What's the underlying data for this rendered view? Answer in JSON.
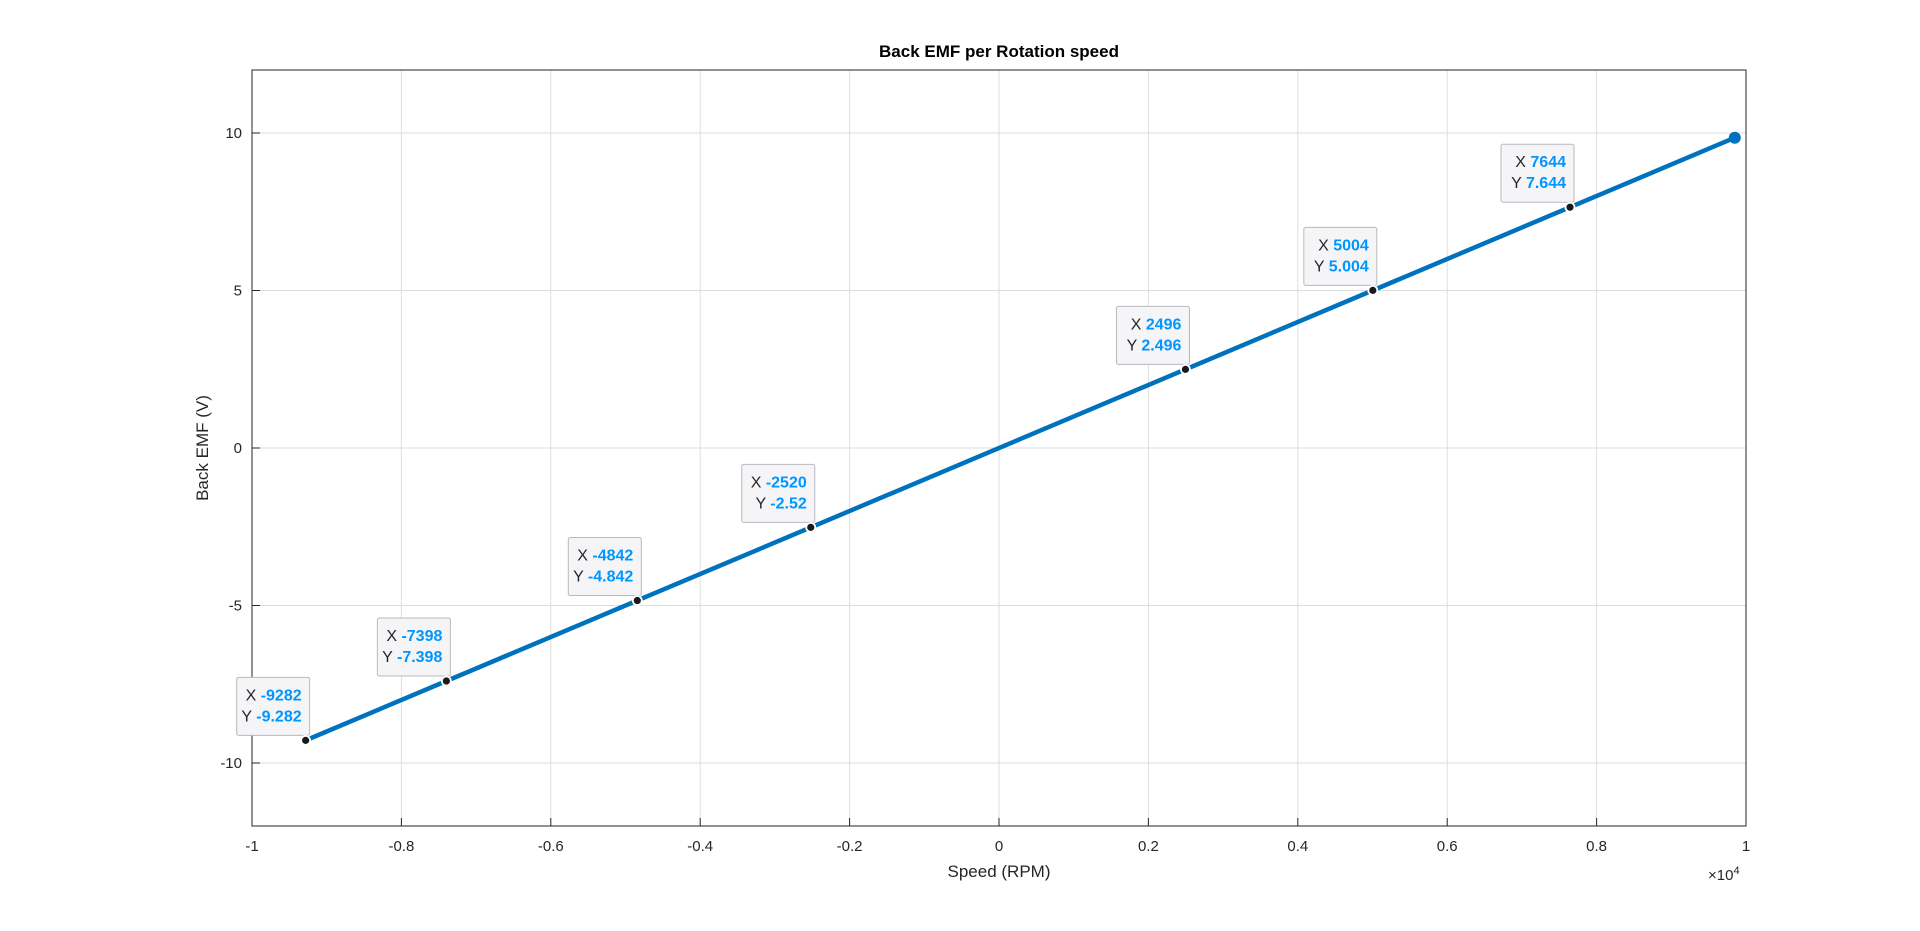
{
  "chart_data": {
    "type": "line",
    "title": "Back EMF per Rotation speed",
    "xlabel": "Speed (RPM)",
    "ylabel": "Back EMF (V)",
    "xlim": [
      -10000,
      10000
    ],
    "ylim": [
      -12,
      12
    ],
    "x_exponent_label": "×10",
    "x_exponent_power": "4",
    "x_tick_values": [
      -10000,
      -8000,
      -6000,
      -4000,
      -2000,
      0,
      2000,
      4000,
      6000,
      8000,
      10000
    ],
    "x_tick_labels": [
      "-1",
      "-0.8",
      "-0.6",
      "-0.4",
      "-0.2",
      "0",
      "0.2",
      "0.4",
      "0.6",
      "0.8",
      "1"
    ],
    "y_tick_values": [
      -10,
      -5,
      0,
      5,
      10
    ],
    "y_tick_labels": [
      "-10",
      "-5",
      "0",
      "5",
      "10"
    ],
    "grid": true,
    "series": [
      {
        "color": "#0072BD",
        "x": [
          -9282,
          9850
        ],
        "y": [
          -9.282,
          9.85
        ]
      }
    ],
    "end_marker": {
      "x": 9850,
      "y": 9.85
    },
    "datatips": [
      {
        "x": -9282,
        "y": -9.282,
        "x_text": "-9282",
        "y_text": "-9.282"
      },
      {
        "x": -7398,
        "y": -7.398,
        "x_text": "-7398",
        "y_text": "-7.398"
      },
      {
        "x": -4842,
        "y": -4.842,
        "x_text": "-4842",
        "y_text": "-4.842"
      },
      {
        "x": -2520,
        "y": -2.52,
        "x_text": "-2520",
        "y_text": "-2.52"
      },
      {
        "x": 2496,
        "y": 2.496,
        "x_text": "2496",
        "y_text": "2.496"
      },
      {
        "x": 5004,
        "y": 5.004,
        "x_text": "5004",
        "y_text": "5.004"
      },
      {
        "x": 7644,
        "y": 7.644,
        "x_text": "7644",
        "y_text": "7.644"
      }
    ],
    "datatip_x_key": "X",
    "datatip_y_key": "Y",
    "datatip_value_color": "#0096FF"
  }
}
